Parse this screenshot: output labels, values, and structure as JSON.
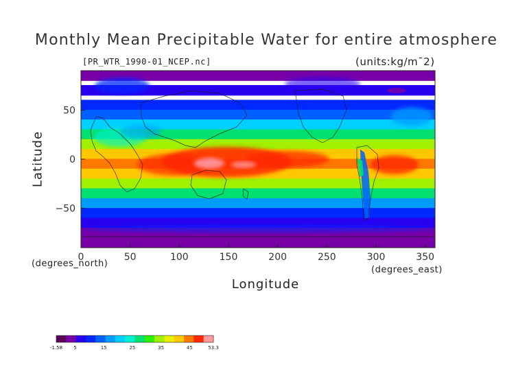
{
  "title": "Monthly Mean Precipitable Water for entire atmosphere",
  "subtitle": "[PR_WTR_1990-01_NCEP.nc]",
  "units_label": "(units:kg/m^2)",
  "chart_data": {
    "type": "heatmap",
    "title": "Monthly Mean Precipitable Water for entire atmosphere",
    "xlabel": "Longitude",
    "ylabel": "Latitude",
    "x_unit_label": "(degrees_east)",
    "y_unit_label": "(degrees_north)",
    "xlim": [
      0,
      360
    ],
    "ylim": [
      -90,
      90
    ],
    "x_ticks": [
      0,
      50,
      100,
      150,
      200,
      250,
      300,
      350
    ],
    "y_ticks": [
      -50,
      0,
      50
    ],
    "colorbar": {
      "min": -1.58,
      "max": 53.3,
      "tick_labels": [
        "-1.58",
        "5",
        "15",
        "25",
        "35",
        "45",
        "53.3"
      ],
      "tick_values": [
        -1.58,
        5,
        15,
        25,
        35,
        45,
        53.3
      ]
    },
    "colormap": [
      "#5a005a",
      "#7800a8",
      "#2800f0",
      "#0028ff",
      "#0060ff",
      "#009cff",
      "#00d0ff",
      "#00f0d0",
      "#00e070",
      "#30f000",
      "#a0f000",
      "#e8f000",
      "#ffc800",
      "#ff7800",
      "#ff2800",
      "#ff9aa0"
    ],
    "latitude_band_means": [
      {
        "lat": 85,
        "value": 3
      },
      {
        "lat": 70,
        "value": 6
      },
      {
        "lat": 55,
        "value": 10
      },
      {
        "lat": 45,
        "value": 14
      },
      {
        "lat": 35,
        "value": 20
      },
      {
        "lat": 25,
        "value": 28
      },
      {
        "lat": 15,
        "value": 36
      },
      {
        "lat": 5,
        "value": 43
      },
      {
        "lat": -5,
        "value": 45
      },
      {
        "lat": -15,
        "value": 42
      },
      {
        "lat": -25,
        "value": 34
      },
      {
        "lat": -35,
        "value": 26
      },
      {
        "lat": -45,
        "value": 18
      },
      {
        "lat": -55,
        "value": 12
      },
      {
        "lat": -65,
        "value": 8
      },
      {
        "lat": -75,
        "value": 4
      },
      {
        "lat": -85,
        "value": 2
      }
    ]
  }
}
